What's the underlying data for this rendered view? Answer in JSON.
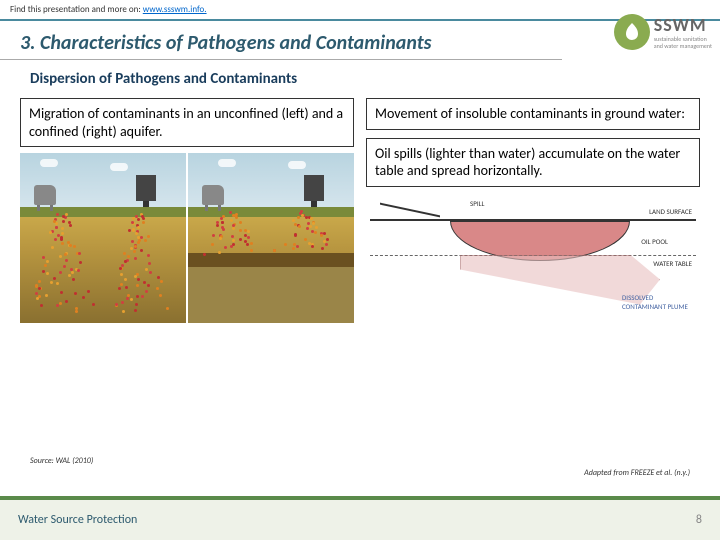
{
  "header": {
    "prefix": "Find this presentation and more on: ",
    "link_text": "www.ssswm.info.",
    "link_href": "#"
  },
  "logo": {
    "acronym": "SSWM",
    "sub1": "sustainable sanitation",
    "sub2": "and water management"
  },
  "section_title": "3. Characteristics of Pathogens and Contaminants",
  "sub_title": "Dispersion of Pathogens and Contaminants",
  "left": {
    "caption": "Migration of contaminants in an unconfined (left) and a confined (right) aquifer.",
    "source": "Source: WAL (2010)"
  },
  "right": {
    "box1": "Movement of insoluble contaminants in ground water:",
    "box2": "Oil spills (lighter than water) accumulate on the water table and spread horizontally.",
    "labels": {
      "spill": "SPILL",
      "land": "LAND SURFACE",
      "pool": "OIL POOL",
      "wt": "WATER TABLE",
      "plume": "DISSOLVED CONTAMINANT PLUME"
    },
    "source": "Adapted from FREEZE et al. (n.y.)"
  },
  "footer": {
    "title": "Water Source Protection",
    "page": "8"
  },
  "colors": {
    "accent": "#4a8a9e",
    "green": "#5a8a4a",
    "title": "#2d5a6e",
    "oil": "#d98888"
  },
  "dot_colors": [
    "#d04040",
    "#e08020",
    "#c03030",
    "#e6a030"
  ]
}
